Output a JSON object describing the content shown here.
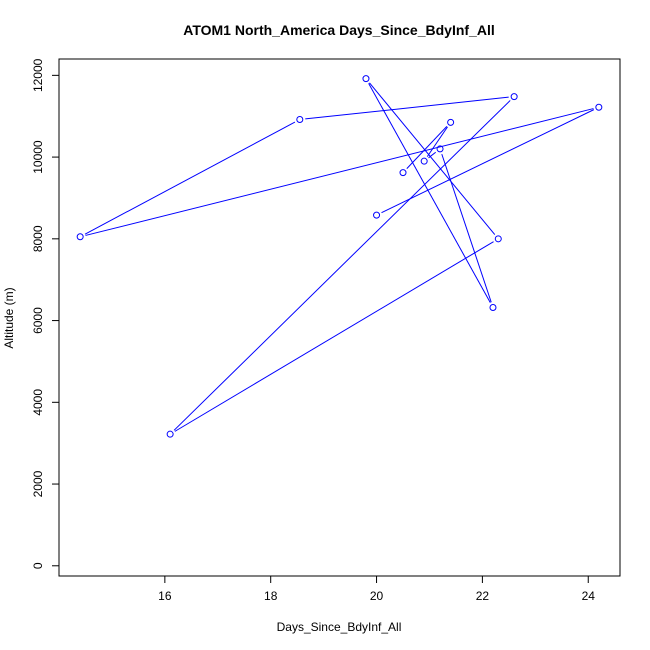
{
  "chart_data": {
    "type": "line",
    "title": "ATOM1 North_America Days_Since_BdyInf_All",
    "xlabel": "Days_Since_BdyInf_All",
    "ylabel": "Altitude (m)",
    "xlim": [
      14.0,
      24.6
    ],
    "ylim": [
      -250,
      12400
    ],
    "xticks": [
      16,
      18,
      20,
      22,
      24
    ],
    "yticks": [
      0,
      2000,
      4000,
      6000,
      8000,
      10000,
      12000
    ],
    "grid": false,
    "series": [
      {
        "color": "#0000ff",
        "marker": "open-circle",
        "x": [
          20.5,
          21.4,
          20.9,
          21.2,
          22.2,
          19.8,
          22.3,
          16.1,
          22.6,
          18.55,
          14.4,
          24.2,
          20.0
        ],
        "y": [
          9620,
          10850,
          9900,
          10200,
          6320,
          11920,
          8000,
          3220,
          11480,
          10920,
          8050,
          11220,
          8580
        ]
      }
    ]
  }
}
